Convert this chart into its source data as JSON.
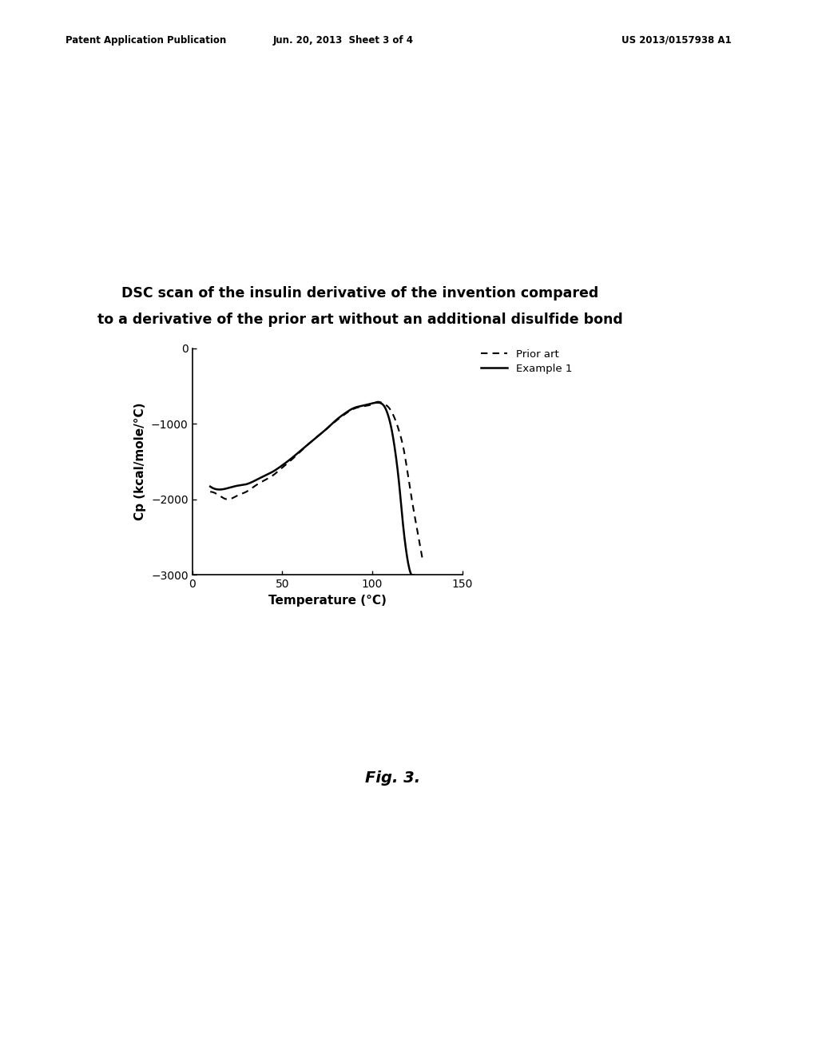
{
  "title_line1": "DSC scan of the insulin derivative of the invention compared",
  "title_line2": "to a derivative of the prior art without an additional disulfide bond",
  "xlabel": "Temperature (°C)",
  "ylabel": "Cp (kcal/mole/°C)",
  "xlim": [
    0,
    150
  ],
  "ylim": [
    -3000,
    0
  ],
  "xticks": [
    0,
    50,
    100,
    150
  ],
  "yticks": [
    0,
    -1000,
    -2000,
    -3000
  ],
  "legend_labels": [
    "Prior art",
    "Example 1"
  ],
  "header_left": "Patent Application Publication",
  "header_mid": "Jun. 20, 2013  Sheet 3 of 4",
  "header_right": "US 2013/0157938 A1",
  "fig_label": "Fig. 3.",
  "background_color": "#ffffff",
  "line_color": "#000000",
  "title_fontsize": 12.5,
  "axis_fontsize": 11,
  "tick_fontsize": 10,
  "prior_art_t": [
    10,
    15,
    20,
    25,
    30,
    35,
    40,
    45,
    50,
    55,
    60,
    65,
    70,
    75,
    80,
    85,
    90,
    95,
    100,
    103,
    106,
    109,
    112,
    115,
    118,
    120,
    122,
    125,
    128
  ],
  "prior_art_y": [
    -1900,
    -1950,
    -2000,
    -1950,
    -1900,
    -1820,
    -1750,
    -1680,
    -1580,
    -1480,
    -1370,
    -1260,
    -1160,
    -1060,
    -960,
    -870,
    -800,
    -770,
    -740,
    -710,
    -730,
    -780,
    -900,
    -1100,
    -1400,
    -1700,
    -2000,
    -2400,
    -2800
  ],
  "example1_t": [
    10,
    15,
    20,
    25,
    30,
    35,
    40,
    45,
    50,
    55,
    60,
    65,
    70,
    75,
    80,
    85,
    90,
    95,
    100,
    103,
    105,
    107,
    109,
    111,
    113,
    115,
    117,
    119,
    121,
    123
  ],
  "example1_y": [
    -1830,
    -1870,
    -1850,
    -1820,
    -1800,
    -1750,
    -1690,
    -1630,
    -1550,
    -1460,
    -1360,
    -1260,
    -1160,
    -1060,
    -950,
    -860,
    -790,
    -760,
    -730,
    -720,
    -730,
    -780,
    -900,
    -1100,
    -1400,
    -1800,
    -2300,
    -2700,
    -2950,
    -3000
  ]
}
